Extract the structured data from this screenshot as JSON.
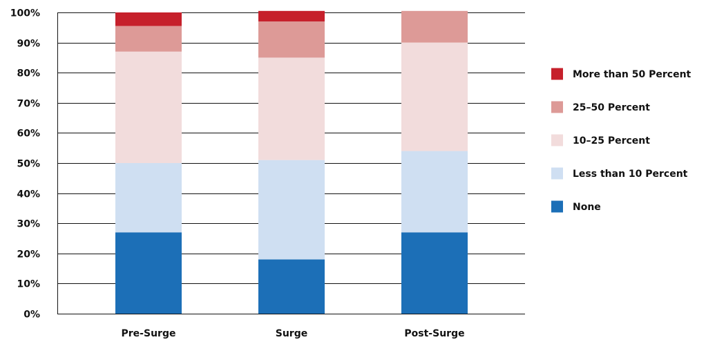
{
  "chart_data": {
    "type": "bar",
    "stacked": true,
    "title": "",
    "xlabel": "",
    "ylabel": "",
    "ylim": [
      0,
      100
    ],
    "y_ticks": [
      0,
      10,
      20,
      30,
      40,
      50,
      60,
      70,
      80,
      90,
      100
    ],
    "y_tick_labels": [
      "0%",
      "10%",
      "20%",
      "30%",
      "40%",
      "50%",
      "60%",
      "70%",
      "80%",
      "90%",
      "100%"
    ],
    "grid": true,
    "legend_position": "right",
    "categories": [
      "Pre-Surge",
      "Surge",
      "Post-Surge"
    ],
    "series": [
      {
        "name": "None",
        "values": [
          27,
          18,
          27
        ],
        "color": "#1c6fb7"
      },
      {
        "name": "Less than 10 Percent",
        "values": [
          23,
          33,
          27
        ],
        "color": "#cfdff2"
      },
      {
        "name": "10–25 Percent",
        "values": [
          37,
          34,
          36
        ],
        "color": "#f2dcdc"
      },
      {
        "name": "25–50 Percent",
        "values": [
          8.5,
          12,
          10.5
        ],
        "color": "#dd9a97"
      },
      {
        "name": "More than 50 Percent",
        "values": [
          4.5,
          3.5,
          0
        ],
        "color": "#c6202b"
      }
    ],
    "legend_order": [
      "More than 50 Percent",
      "25–50 Percent",
      "10–25 Percent",
      "Less than 10 Percent",
      "None"
    ]
  }
}
